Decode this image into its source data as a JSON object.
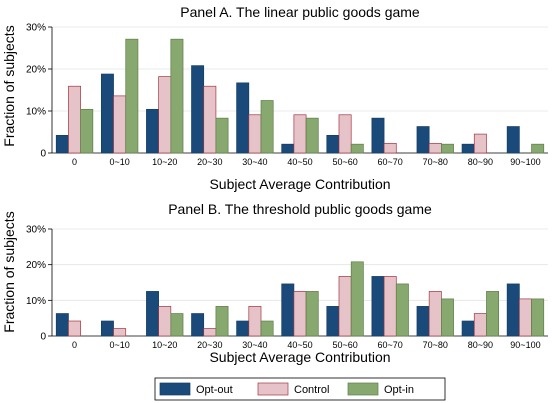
{
  "chart_data": [
    {
      "type": "bar",
      "title": "Panel A. The linear public goods game",
      "xlabel": "Subject Average Contribution",
      "ylabel": "Fraction of subjects",
      "ylim": [
        0,
        0.3
      ],
      "yticks": [
        "0",
        "10%",
        "20%",
        "30%"
      ],
      "categories": [
        "0",
        "0~10",
        "10~20",
        "20~30",
        "30~40",
        "40~50",
        "50~60",
        "60~70",
        "70~80",
        "80~90",
        "90~100"
      ],
      "grid": true,
      "series": [
        {
          "name": "Opt-out",
          "color": "#1a4a7a",
          "values": [
            0.042,
            0.188,
            0.104,
            0.208,
            0.167,
            0.021,
            0.042,
            0.083,
            0.063,
            0.021,
            0.063
          ]
        },
        {
          "name": "Control",
          "color": "#e6c3c8",
          "values": [
            0.159,
            0.136,
            0.182,
            0.159,
            0.091,
            0.091,
            0.091,
            0.023,
            0.023,
            0.045,
            0.0
          ]
        },
        {
          "name": "Opt-in",
          "color": "#87a86e",
          "values": [
            0.104,
            0.271,
            0.271,
            0.083,
            0.125,
            0.083,
            0.021,
            0.0,
            0.021,
            0.0,
            0.021
          ]
        }
      ]
    },
    {
      "type": "bar",
      "title": "Panel B. The threshold public goods game",
      "xlabel": "Subject Average Contribution",
      "ylabel": "Fraction of subjects",
      "ylim": [
        0,
        0.3
      ],
      "yticks": [
        "0",
        "10%",
        "20%",
        "30%"
      ],
      "categories": [
        "0",
        "0~10",
        "10~20",
        "20~30",
        "30~40",
        "40~50",
        "50~60",
        "60~70",
        "70~80",
        "80~90",
        "90~100"
      ],
      "grid": true,
      "series": [
        {
          "name": "Opt-out",
          "color": "#1a4a7a",
          "values": [
            0.063,
            0.042,
            0.125,
            0.063,
            0.042,
            0.146,
            0.083,
            0.167,
            0.083,
            0.042,
            0.146
          ]
        },
        {
          "name": "Control",
          "color": "#e6c3c8",
          "values": [
            0.042,
            0.021,
            0.083,
            0.021,
            0.083,
            0.125,
            0.167,
            0.167,
            0.125,
            0.063,
            0.104
          ]
        },
        {
          "name": "Opt-in",
          "color": "#87a86e",
          "values": [
            0.0,
            0.0,
            0.063,
            0.083,
            0.042,
            0.125,
            0.208,
            0.146,
            0.104,
            0.125,
            0.104
          ]
        }
      ]
    }
  ],
  "legend": {
    "position": "bottom",
    "items": [
      {
        "label": "Opt-out",
        "color": "#1a4a7a"
      },
      {
        "label": "Control",
        "color": "#e6c3c8"
      },
      {
        "label": "Opt-in",
        "color": "#87a86e"
      }
    ]
  }
}
